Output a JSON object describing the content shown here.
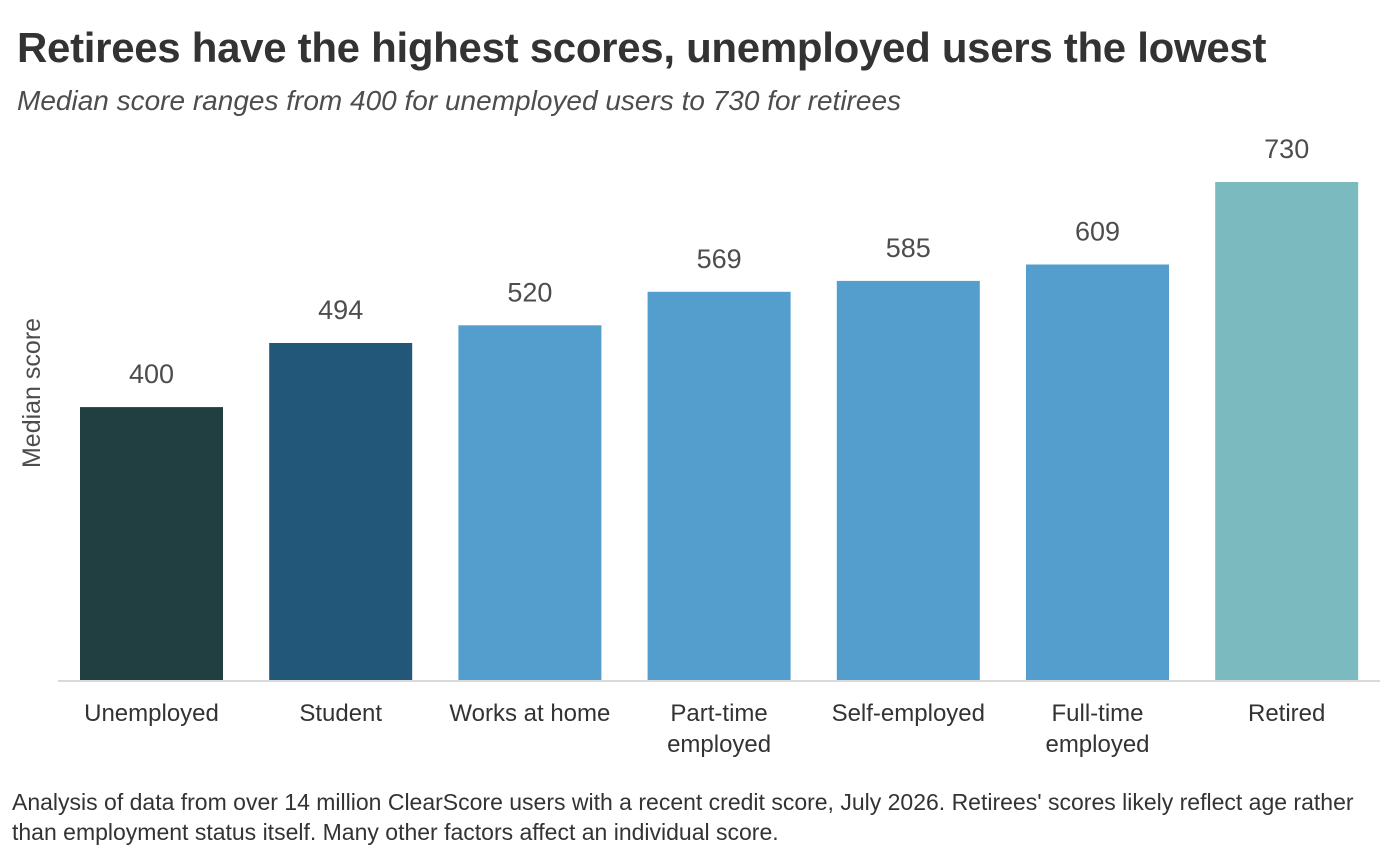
{
  "chart_data": {
    "type": "bar",
    "title": "Retirees have the highest scores, unemployed users the lowest",
    "subtitle": "Median score ranges from 400 for unemployed users to 730 for retirees",
    "ylabel": "Median score",
    "xlabel": "",
    "categories": [
      [
        "Unemployed"
      ],
      [
        "Student"
      ],
      [
        "Works at home"
      ],
      [
        "Part-time",
        "employed"
      ],
      [
        "Self-employed"
      ],
      [
        "Full-time",
        "employed"
      ],
      [
        "Retired"
      ]
    ],
    "values": [
      400,
      494,
      520,
      569,
      585,
      609,
      730
    ],
    "colors": [
      "#213f40",
      "#22577a",
      "#549ecd",
      "#549ecd",
      "#549ecd",
      "#549ecd",
      "#7bbbc0"
    ],
    "ylim": [
      0,
      730
    ],
    "grid": false,
    "legend": "none"
  },
  "footnote": "Analysis of data from over 14 million ClearScore users with a recent credit score, July 2026. Retirees' scores likely reflect age rather than employment status itself. Many other factors affect an individual score."
}
